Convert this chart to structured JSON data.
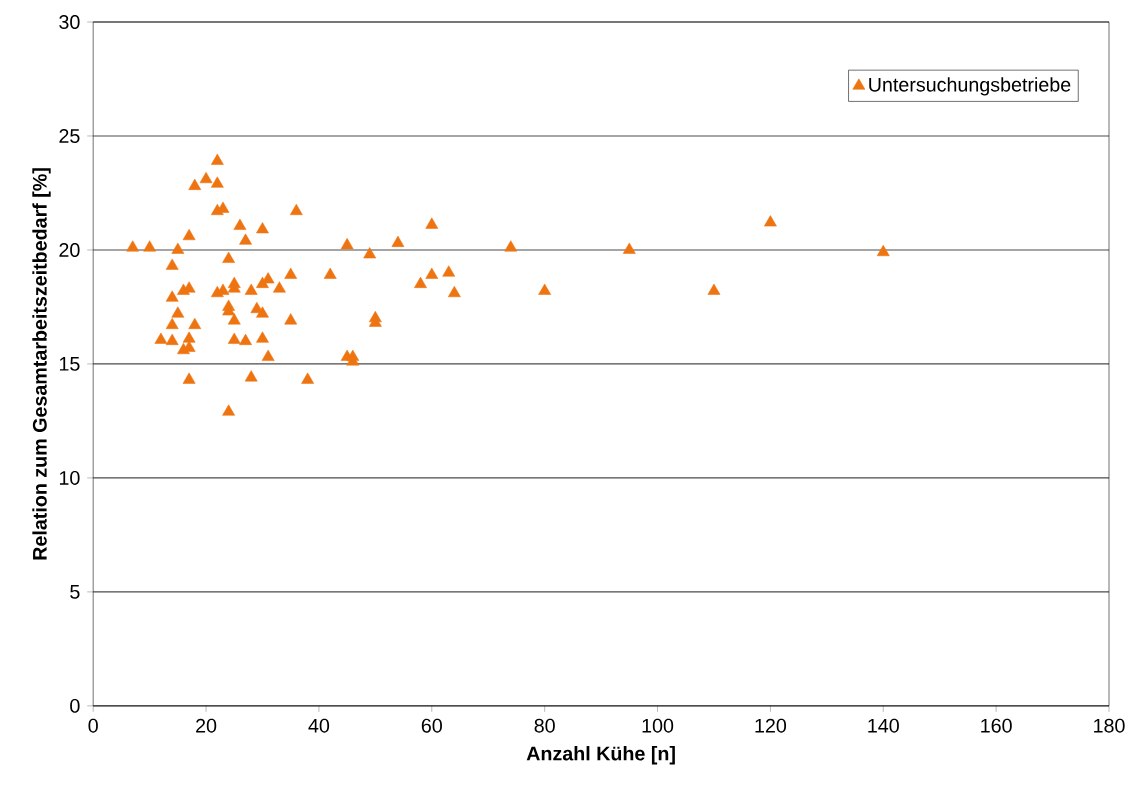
{
  "chart_data": {
    "type": "scatter",
    "xlabel": "Anzahl Kühe [n]",
    "ylabel": "Relation zum Gesamtarbeitszeitbedarf [%]",
    "xlim": [
      0,
      180
    ],
    "xticks": [
      0,
      20,
      40,
      60,
      80,
      100,
      120,
      140,
      160,
      180
    ],
    "ylim": [
      0,
      30
    ],
    "yticks": [
      0,
      5,
      10,
      15,
      20,
      25,
      30
    ],
    "grid": "y",
    "legend": "top right",
    "marker": "triangle",
    "series": [
      {
        "name": "Untersuchungsbetriebe",
        "color": "#ee7411",
        "x": [
          7,
          10,
          12,
          14,
          14,
          14,
          14,
          15,
          15,
          16,
          16,
          17,
          17,
          17,
          17,
          17,
          18,
          18,
          20,
          22,
          22,
          22,
          23,
          22,
          23,
          24,
          24,
          24,
          24,
          25,
          25,
          25,
          25,
          26,
          27,
          27,
          28,
          28,
          29,
          30,
          30,
          30,
          30,
          31,
          31,
          33,
          35,
          35,
          36,
          38,
          42,
          45,
          45,
          46,
          46,
          49,
          50,
          50,
          54,
          58,
          60,
          60,
          63,
          64,
          74,
          80,
          95,
          110,
          120,
          140
        ],
        "values": [
          20.1,
          20.1,
          16.05,
          19.3,
          17.9,
          16.7,
          16.0,
          20.0,
          17.2,
          18.2,
          15.6,
          20.6,
          18.3,
          16.1,
          15.7,
          14.3,
          16.7,
          22.8,
          23.1,
          23.9,
          22.9,
          21.7,
          21.8,
          18.1,
          18.2,
          19.6,
          17.5,
          17.3,
          12.9,
          18.5,
          18.3,
          16.9,
          16.05,
          21.05,
          20.4,
          16.0,
          18.2,
          14.4,
          17.4,
          20.9,
          18.5,
          17.2,
          16.1,
          18.7,
          15.3,
          18.3,
          18.9,
          16.9,
          21.7,
          14.3,
          18.9,
          20.2,
          15.3,
          15.3,
          15.1,
          19.8,
          17.0,
          16.8,
          20.3,
          18.5,
          18.9,
          21.1,
          19.0,
          18.1,
          20.1,
          18.2,
          20.0,
          18.2,
          21.2,
          19.9
        ]
      }
    ]
  }
}
